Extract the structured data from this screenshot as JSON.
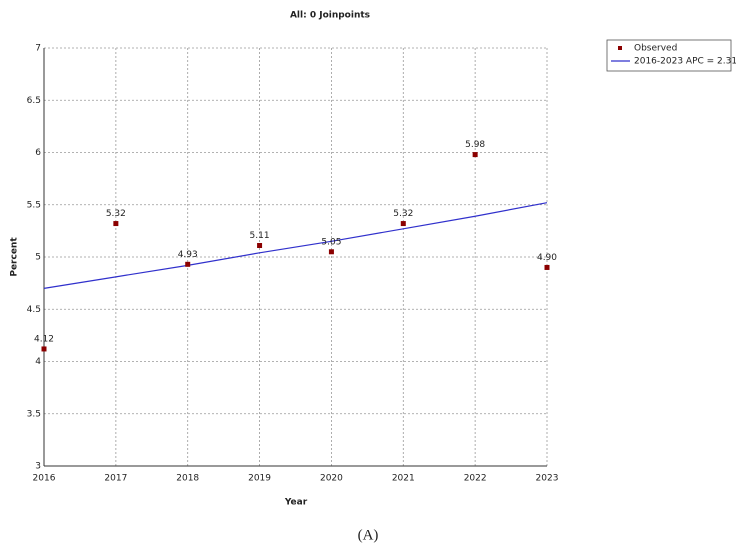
{
  "chart_data": {
    "type": "line",
    "title": "All: 0 Joinpoints",
    "xlabel": "Year",
    "ylabel": "Percent",
    "caption": "(A)",
    "x": [
      2016,
      2017,
      2018,
      2019,
      2020,
      2021,
      2022,
      2023
    ],
    "xlim": [
      2016,
      2023
    ],
    "xticks": [
      2016,
      2017,
      2018,
      2019,
      2020,
      2021,
      2022,
      2023
    ],
    "ylim": [
      3,
      7
    ],
    "yticks": [
      3,
      3.5,
      4,
      4.5,
      5,
      5.5,
      6,
      6.5,
      7
    ],
    "grid": true,
    "legend": "upper right",
    "series": [
      {
        "name": "Observed",
        "color": "#8b0000",
        "marker": "square",
        "values": [
          4.12,
          5.32,
          4.93,
          5.11,
          5.05,
          5.32,
          5.98,
          4.9
        ],
        "value_labels": [
          "4.12",
          "5.32",
          "4.93",
          "5.11",
          "5.05",
          "5.32",
          "5.98",
          "4.90"
        ]
      },
      {
        "name": "2016-2023 APC  = 2.31",
        "color": "#3030cc",
        "marker": "none",
        "values": [
          4.7,
          4.81,
          4.92,
          5.04,
          5.15,
          5.27,
          5.39,
          5.52
        ]
      }
    ]
  }
}
